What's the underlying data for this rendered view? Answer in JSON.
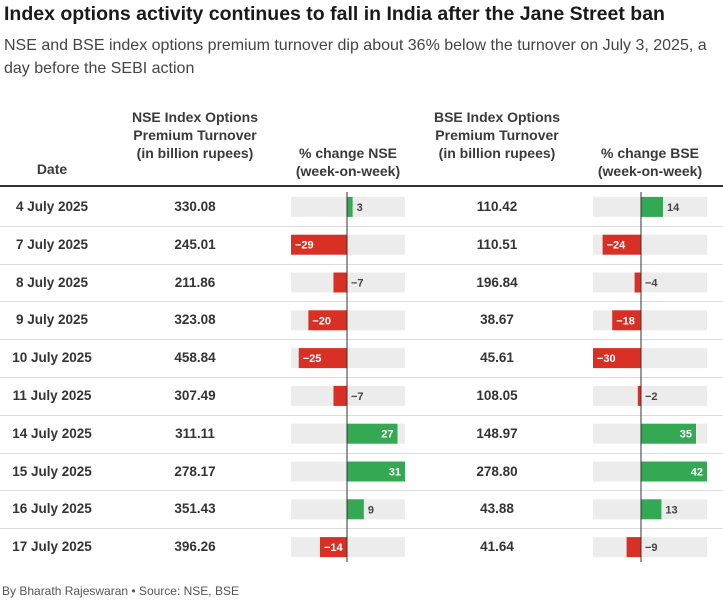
{
  "title": "Index options activity continues to fall in India after the Jane Street ban",
  "subtitle": "NSE and BSE index options premium turnover dip about 36% below the turnover on July 3, 2025, a day before the SEBI action",
  "footer": "By Bharath Rajeswaran • Source: NSE, BSE",
  "colors": {
    "positive": "#34a853",
    "negative": "#d93025",
    "track": "#ececec",
    "axis": "#333333"
  },
  "chart_data": {
    "type": "table",
    "columns": [
      "Date",
      "NSE Index Options Premium Turnover (in billion rupees)",
      "% change NSE (week-on-week)",
      "BSE Index Options Premium Turnover (in billion rupees)",
      "% change BSE (week-on-week)"
    ],
    "pct_range": [
      -30,
      42
    ],
    "rows": [
      {
        "date": "4 July 2025",
        "nse": "330.08",
        "nse_pct": 3,
        "bse": "110.42",
        "bse_pct": 14
      },
      {
        "date": "7 July 2025",
        "nse": "245.01",
        "nse_pct": -29,
        "bse": "110.51",
        "bse_pct": -24
      },
      {
        "date": "8 July 2025",
        "nse": "211.86",
        "nse_pct": -7,
        "bse": "196.84",
        "bse_pct": -4
      },
      {
        "date": "9 July 2025",
        "nse": "323.08",
        "nse_pct": -20,
        "bse": "38.67",
        "bse_pct": -18
      },
      {
        "date": "10 July 2025",
        "nse": "458.84",
        "nse_pct": -25,
        "bse": "45.61",
        "bse_pct": -30
      },
      {
        "date": "11 July 2025",
        "nse": "307.49",
        "nse_pct": -7,
        "bse": "108.05",
        "bse_pct": -2
      },
      {
        "date": "14 July 2025",
        "nse": "311.11",
        "nse_pct": 27,
        "bse": "148.97",
        "bse_pct": 35
      },
      {
        "date": "15 July 2025",
        "nse": "278.17",
        "nse_pct": 31,
        "bse": "278.80",
        "bse_pct": 42
      },
      {
        "date": "16 July 2025",
        "nse": "351.43",
        "nse_pct": 9,
        "bse": "43.88",
        "bse_pct": 13
      },
      {
        "date": "17 July 2025",
        "nse": "396.26",
        "nse_pct": -14,
        "bse": "41.64",
        "bse_pct": -9
      }
    ]
  }
}
